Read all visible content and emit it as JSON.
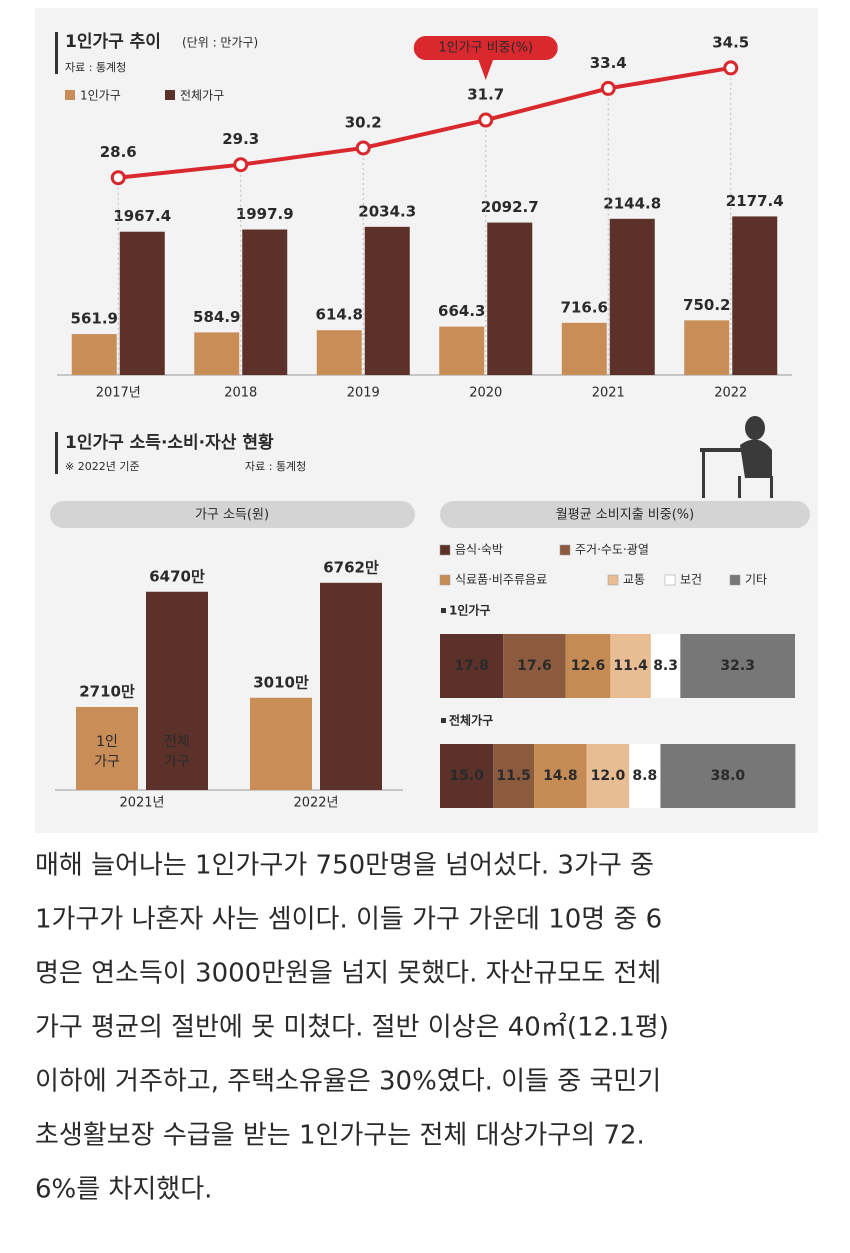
{
  "chart_data": [
    {
      "type": "bar",
      "title": "1인가구 추이",
      "unit": "(단위 : 만가구)",
      "source": "자료 : 통계청",
      "categories": [
        "2017년",
        "2018",
        "2019",
        "2020",
        "2021",
        "2022"
      ],
      "series": [
        {
          "name": "1인가구",
          "color": "#c98d58",
          "values": [
            561.9,
            584.9,
            614.8,
            664.3,
            716.6,
            750.2
          ]
        },
        {
          "name": "전체가구",
          "color": "#5c3129",
          "values": [
            1967.4,
            1997.9,
            2034.3,
            2092.7,
            2144.8,
            2177.4
          ]
        },
        {
          "name": "1인가구 비중(%)",
          "color": "#d9282e",
          "type": "line",
          "axis": "y2",
          "values": [
            28.6,
            29.3,
            30.2,
            31.7,
            33.4,
            34.5
          ]
        }
      ],
      "ylim": [
        0,
        4600
      ],
      "y2lim": [
        18,
        36
      ]
    },
    {
      "type": "bar",
      "title": "가구 소득(원)",
      "categories": [
        "2021년",
        "2022년"
      ],
      "series": [
        {
          "name": "1인 가구",
          "color": "#c98d58",
          "values": [
            2710,
            3010
          ],
          "value_labels": [
            "2710만",
            "3010만"
          ]
        },
        {
          "name": "전체 가구",
          "color": "#5c3129",
          "values": [
            6470,
            6762
          ],
          "value_labels": [
            "6470만",
            "6762만"
          ]
        }
      ],
      "ylim": [
        0,
        7800
      ]
    },
    {
      "type": "stacked_barh",
      "title": "월평균 소비지출 비중(%)",
      "categories": [
        "1인가구",
        "전체가구"
      ],
      "series": [
        {
          "name": "음식·숙박",
          "color": "#5c3129",
          "values": [
            17.8,
            15.0
          ],
          "value_labels": [
            "17.8",
            "15.0"
          ]
        },
        {
          "name": "주거·수도·광열",
          "color": "#8c5a3e",
          "values": [
            17.6,
            11.5
          ]
        },
        {
          "name": "식료품·비주류음료",
          "color": "#c48b55",
          "values": [
            12.6,
            14.8
          ]
        },
        {
          "name": "교통",
          "color": "#e8bd94",
          "values": [
            11.4,
            12.0
          ],
          "value_labels": [
            "11.4",
            "12.0"
          ]
        },
        {
          "name": "보건",
          "color": "#ffffff",
          "values": [
            8.3,
            8.8
          ]
        },
        {
          "name": "기타",
          "color": "#777777",
          "values": [
            32.3,
            38.0
          ],
          "value_labels": [
            "32.3",
            "38.0"
          ]
        }
      ],
      "xlim": [
        0,
        100
      ]
    }
  ],
  "section": {
    "title": "1인가구 소득·소비·자산 현황",
    "note": "※ 2022년 기준",
    "source": "자료 : 통계청"
  },
  "article": {
    "lines": [
      "매해 늘어나는 1인가구가 750만명을 넘어섰다. 3가구 중",
      "1가구가 나혼자 사는 셈이다. 이들 가구 가운데 10명 중 6",
      "명은 연소득이 3000만원을 넘지 못했다. 자산규모도 전체",
      "가구 평균의 절반에 못 미쳤다. 절반 이상은 40㎡(12.1평)",
      "이하에 거주하고, 주택소유율은 30%였다. 이들 중 국민기",
      "초생활보장 수급을 받는 1인가구는 전체 대상가구의 72.",
      "6%를 차지했다."
    ]
  }
}
